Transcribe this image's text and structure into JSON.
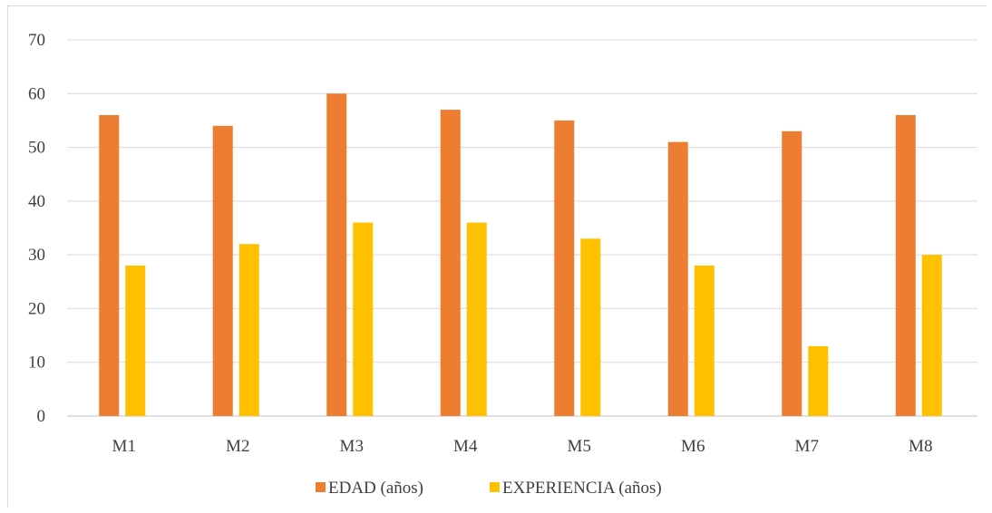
{
  "chart_data": {
    "type": "bar",
    "title": "",
    "xlabel": "",
    "ylabel": "",
    "categories": [
      "M1",
      "M2",
      "M3",
      "M4",
      "M5",
      "M6",
      "M7",
      "M8"
    ],
    "series": [
      {
        "name": "EDAD (años)",
        "color": "#ED7D31",
        "values": [
          56,
          54,
          60,
          57,
          55,
          51,
          53,
          56
        ]
      },
      {
        "name": "EXPERIENCIA (años)",
        "color": "#FFC000",
        "values": [
          28,
          32,
          36,
          36,
          33,
          28,
          13,
          30
        ]
      }
    ],
    "ylim": [
      0,
      70
    ],
    "yticks": [
      "0",
      "10",
      "20",
      "30",
      "40",
      "50",
      "60",
      "70"
    ],
    "grid": true,
    "legend": "bottom"
  }
}
